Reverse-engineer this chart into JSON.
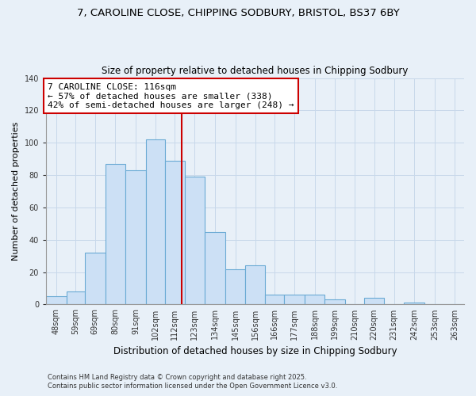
{
  "title_line1": "7, CAROLINE CLOSE, CHIPPING SODBURY, BRISTOL, BS37 6BY",
  "title_line2": "Size of property relative to detached houses in Chipping Sodbury",
  "xlabel": "Distribution of detached houses by size in Chipping Sodbury",
  "ylabel": "Number of detached properties",
  "bin_labels": [
    "48sqm",
    "59sqm",
    "69sqm",
    "80sqm",
    "91sqm",
    "102sqm",
    "112sqm",
    "123sqm",
    "134sqm",
    "145sqm",
    "156sqm",
    "166sqm",
    "177sqm",
    "188sqm",
    "199sqm",
    "210sqm",
    "220sqm",
    "231sqm",
    "242sqm",
    "253sqm",
    "263sqm"
  ],
  "bin_edges": [
    42.5,
    53.5,
    63.5,
    74.5,
    85.5,
    96.5,
    107,
    117.5,
    128.5,
    139.5,
    150.5,
    161,
    171.5,
    182.5,
    193.5,
    204.5,
    215,
    225.5,
    236.5,
    247.5,
    258.5,
    269
  ],
  "counts": [
    5,
    8,
    32,
    87,
    83,
    102,
    89,
    79,
    45,
    22,
    24,
    6,
    6,
    6,
    3,
    0,
    4,
    0,
    1,
    0,
    0
  ],
  "bar_facecolor": "#cce0f5",
  "bar_edgecolor": "#6aaad4",
  "grid_color": "#c8d8ea",
  "vline_x": 116,
  "vline_color": "#cc0000",
  "annotation_text": "7 CAROLINE CLOSE: 116sqm\n← 57% of detached houses are smaller (338)\n42% of semi-detached houses are larger (248) →",
  "annotation_box_edgecolor": "#cc0000",
  "annotation_box_facecolor": "white",
  "ylim": [
    0,
    140
  ],
  "yticks": [
    0,
    20,
    40,
    60,
    80,
    100,
    120,
    140
  ],
  "footer_line1": "Contains HM Land Registry data © Crown copyright and database right 2025.",
  "footer_line2": "Contains public sector information licensed under the Open Government Licence v3.0.",
  "bg_color": "#e8f0f8"
}
